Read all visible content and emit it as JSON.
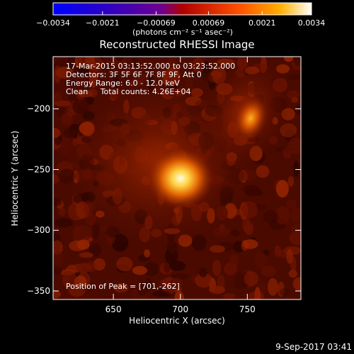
{
  "chart_data": {
    "type": "heatmap",
    "title": "Reconstructed RHESSI Image",
    "xlabel": "Heliocentric X (arcsec)",
    "ylabel": "Heliocentric Y (arcsec)",
    "xlim": [
      605,
      790
    ],
    "ylim": [
      -357,
      -157
    ],
    "xticks": [
      650,
      700,
      750
    ],
    "xtick_labels": [
      "650",
      "700",
      "750"
    ],
    "yticks": [
      -200,
      -250,
      -300,
      -350
    ],
    "ytick_labels": [
      "−200",
      "−250",
      "−300",
      "−350"
    ],
    "colorbar": {
      "min": -0.0034,
      "max": 0.0034,
      "ticks": [
        -0.0034,
        -0.0021,
        -0.00069,
        0.00069,
        0.0021,
        0.0034
      ],
      "tick_labels": [
        "−0.0034",
        "−0.0021",
        "−0.00069",
        "0.00069",
        "0.0021",
        "0.0034"
      ],
      "unit_label": "(photons cm⁻² s⁻¹ asec⁻²)",
      "colors": [
        "#0000ff",
        "#3000c0",
        "#700090",
        "#b00000",
        "#ff5000",
        "#ffb000",
        "#ffffff"
      ]
    },
    "annotations": [
      "17-Mar-2015 03:13:52.000 to 03:23:52.000",
      "Detectors: 3F 5F 6F 7F 8F 9F, Att 0",
      "Energy Range: 6.0 - 12.0 keV",
      "Clean     Total counts: 4.26E+04"
    ],
    "peak_label": "Position of Peak = [701,-262]",
    "sources": [
      {
        "x": 701,
        "y": -262,
        "relative_intensity": 1.0
      },
      {
        "x": 755,
        "y": -215,
        "relative_intensity": 0.55
      }
    ]
  },
  "footer": {
    "timestamp": "9-Sep-2017 03:41"
  }
}
